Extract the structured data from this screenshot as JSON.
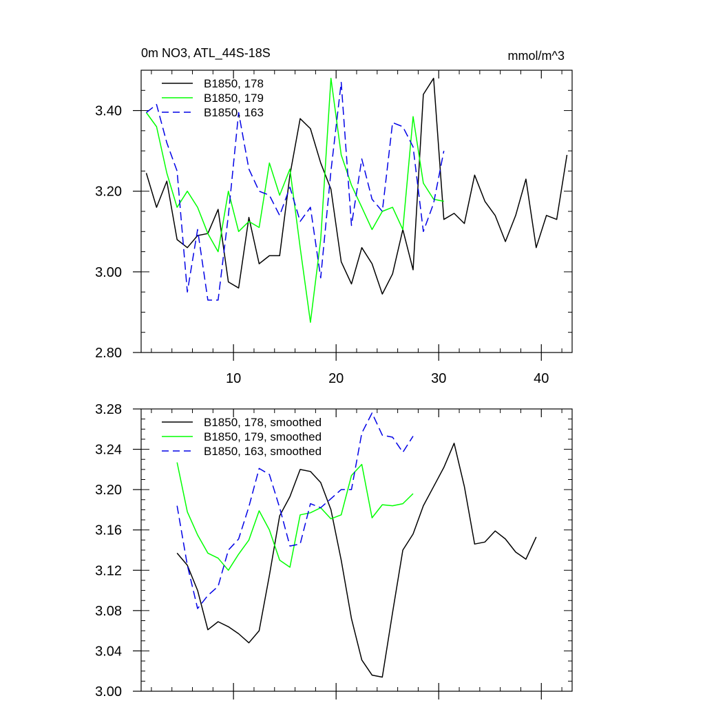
{
  "chart_data": [
    {
      "type": "line",
      "title": "0m NO3, ATL_44S-18S",
      "units": "mmol/m^3",
      "xlim": [
        1,
        43
      ],
      "ylim": [
        2.8,
        3.5
      ],
      "xticks": [
        10,
        20,
        30,
        40
      ],
      "xtick_labels": [
        "10",
        "20",
        "30",
        "40"
      ],
      "yticks": [
        2.8,
        3.0,
        3.2,
        3.4
      ],
      "ytick_labels": [
        "2.80",
        "3.00",
        "3.20",
        "3.40"
      ],
      "series": [
        {
          "name": "B1850, 178",
          "color": "#000000",
          "dash": "solid",
          "x": [
            1.5,
            2.5,
            3.5,
            4.5,
            5.5,
            6.5,
            7.5,
            8.5,
            9.5,
            10.5,
            11.5,
            12.5,
            13.5,
            14.5,
            15.5,
            16.5,
            17.5,
            18.5,
            19.5,
            20.5,
            21.5,
            22.5,
            23.5,
            24.5,
            25.5,
            26.5,
            27.5,
            28.5,
            29.5,
            30.5,
            31.5,
            32.5,
            33.5,
            34.5,
            35.5,
            36.5,
            37.5,
            38.5,
            39.5,
            40.5,
            41.5,
            42.5
          ],
          "y": [
            3.245,
            3.16,
            3.225,
            3.08,
            3.06,
            3.09,
            3.095,
            3.155,
            2.975,
            2.96,
            3.135,
            3.02,
            3.04,
            3.04,
            3.24,
            3.38,
            3.355,
            3.27,
            3.205,
            3.025,
            2.97,
            3.06,
            3.02,
            2.945,
            2.995,
            3.105,
            3.005,
            3.44,
            3.48,
            3.13,
            3.145,
            3.12,
            3.24,
            3.175,
            3.14,
            3.075,
            3.14,
            3.23,
            3.06,
            3.14,
            3.13,
            3.29
          ]
        },
        {
          "name": "B1850, 179",
          "color": "#00ff00",
          "dash": "solid",
          "x": [
            1.5,
            2.5,
            3.5,
            4.5,
            5.5,
            6.5,
            7.5,
            8.5,
            9.5,
            10.5,
            11.5,
            12.5,
            13.5,
            14.5,
            15.5,
            16.5,
            17.5,
            18.5,
            19.5,
            20.5,
            21.5,
            22.5,
            23.5,
            24.5,
            25.5,
            26.5,
            27.5,
            28.5,
            29.5,
            30.5
          ],
          "y": [
            3.395,
            3.36,
            3.245,
            3.16,
            3.2,
            3.16,
            3.095,
            3.05,
            3.2,
            3.1,
            3.125,
            3.11,
            3.27,
            3.19,
            3.255,
            3.06,
            2.875,
            3.08,
            3.48,
            3.29,
            3.215,
            3.16,
            3.105,
            3.15,
            3.16,
            3.105,
            3.385,
            3.22,
            3.18,
            3.175
          ]
        },
        {
          "name": "B1850, 163",
          "color": "#0000e6",
          "dash": "dashed",
          "x": [
            1.5,
            2.5,
            3.5,
            4.5,
            5.5,
            6.5,
            7.5,
            8.5,
            9.5,
            10.5,
            11.5,
            12.5,
            13.5,
            14.5,
            15.5,
            16.5,
            17.5,
            18.5,
            19.5,
            20.5,
            21.5,
            22.5,
            23.5,
            24.5,
            25.5,
            26.5,
            27.5,
            28.5,
            29.5,
            30.5
          ],
          "y": [
            3.395,
            3.415,
            3.32,
            3.25,
            2.95,
            3.105,
            2.93,
            2.93,
            3.14,
            3.395,
            3.255,
            3.2,
            3.19,
            3.14,
            3.21,
            3.125,
            3.16,
            2.985,
            3.25,
            3.47,
            3.115,
            3.28,
            3.18,
            3.15,
            3.37,
            3.36,
            3.31,
            3.1,
            3.17,
            3.3
          ]
        }
      ]
    },
    {
      "type": "line",
      "title": "",
      "xlim": [
        1,
        43
      ],
      "ylim": [
        3.0,
        3.28
      ],
      "xticks": [
        10,
        20,
        30,
        40
      ],
      "yticks": [
        3.0,
        3.04,
        3.08,
        3.12,
        3.16,
        3.2,
        3.24,
        3.28
      ],
      "ytick_labels": [
        "3.00",
        "3.04",
        "3.08",
        "3.12",
        "3.16",
        "3.20",
        "3.24",
        "3.28"
      ],
      "series": [
        {
          "name": "B1850, 178, smoothed",
          "color": "#000000",
          "dash": "solid",
          "x": [
            4.5,
            5.5,
            6.5,
            7.5,
            8.5,
            9.5,
            10.5,
            11.5,
            12.5,
            13.5,
            14.5,
            15.5,
            16.5,
            17.5,
            18.5,
            19.5,
            20.5,
            21.5,
            22.5,
            23.5,
            24.5,
            25.5,
            26.5,
            27.5,
            28.5,
            29.5,
            30.5,
            31.5,
            32.5,
            33.5,
            34.5,
            35.5,
            36.5,
            37.5,
            38.5,
            39.5
          ],
          "y": [
            3.137,
            3.125,
            3.1,
            3.061,
            3.069,
            3.064,
            3.057,
            3.048,
            3.06,
            3.115,
            3.174,
            3.193,
            3.22,
            3.218,
            3.207,
            3.18,
            3.13,
            3.072,
            3.031,
            3.016,
            3.014,
            3.078,
            3.14,
            3.156,
            3.184,
            3.203,
            3.222,
            3.246,
            3.203,
            3.146,
            3.148,
            3.159,
            3.151,
            3.138,
            3.131,
            3.153
          ]
        },
        {
          "name": "B1850, 179, smoothed",
          "color": "#00ff00",
          "dash": "solid",
          "x": [
            4.5,
            5.5,
            6.5,
            7.5,
            8.5,
            9.5,
            10.5,
            11.5,
            12.5,
            13.5,
            14.5,
            15.5,
            16.5,
            17.5,
            18.5,
            19.5,
            20.5,
            21.5,
            22.5,
            23.5,
            24.5,
            25.5,
            26.5,
            27.5
          ],
          "y": [
            3.227,
            3.178,
            3.155,
            3.137,
            3.132,
            3.12,
            3.136,
            3.15,
            3.179,
            3.16,
            3.13,
            3.123,
            3.175,
            3.177,
            3.182,
            3.171,
            3.175,
            3.214,
            3.225,
            3.172,
            3.185,
            3.184,
            3.186,
            3.196
          ]
        },
        {
          "name": "B1850, 163, smoothed",
          "color": "#0000e6",
          "dash": "dashed",
          "x": [
            4.5,
            5.5,
            6.5,
            7.5,
            8.5,
            9.5,
            10.5,
            11.5,
            12.5,
            13.5,
            14.5,
            15.5,
            16.5,
            17.5,
            18.5,
            19.5,
            20.5,
            21.5,
            22.5,
            23.5,
            24.5,
            25.5,
            26.5,
            27.5
          ],
          "y": [
            3.184,
            3.125,
            3.082,
            3.095,
            3.104,
            3.14,
            3.151,
            3.183,
            3.221,
            3.215,
            3.182,
            3.144,
            3.146,
            3.186,
            3.182,
            3.191,
            3.2,
            3.2,
            3.256,
            3.276,
            3.254,
            3.252,
            3.237,
            3.253
          ]
        }
      ]
    }
  ]
}
